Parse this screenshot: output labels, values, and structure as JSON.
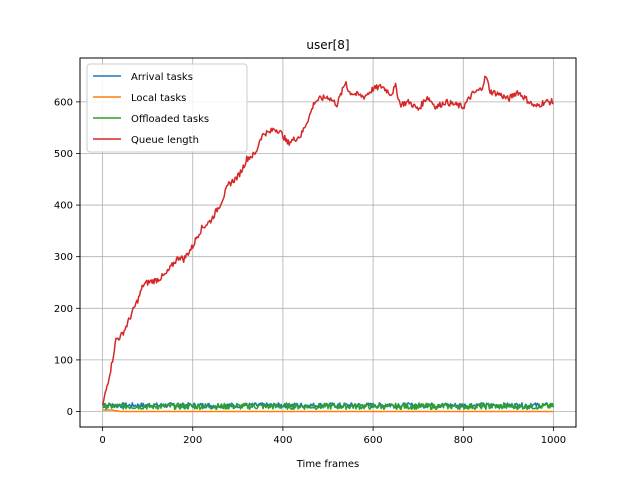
{
  "chart_data": {
    "type": "line",
    "title": "user[8]",
    "xlabel": "Time frames",
    "ylabel": "",
    "xlim": [
      -50,
      1050
    ],
    "ylim": [
      -30,
      685
    ],
    "xticks": [
      0,
      200,
      400,
      600,
      800,
      1000
    ],
    "yticks": [
      0,
      100,
      200,
      300,
      400,
      500,
      600
    ],
    "grid": true,
    "legend": "top-left",
    "series": [
      {
        "name": "Arrival tasks",
        "color": "#1f77b4",
        "x": [
          0,
          1000
        ],
        "y": [
          12,
          12
        ],
        "noise": 5
      },
      {
        "name": "Local tasks",
        "color": "#ff7f0e",
        "x": [
          0,
          20,
          40,
          100,
          200,
          300,
          400,
          480,
          500,
          600,
          700,
          800,
          900,
          1000
        ],
        "y": [
          3,
          3,
          0,
          0,
          0,
          0,
          0,
          0,
          0,
          0,
          0,
          0,
          0,
          0
        ],
        "noise": 0
      },
      {
        "name": "Offloaded tasks",
        "color": "#2ca02c",
        "x": [
          0,
          1000
        ],
        "y": [
          10,
          10
        ],
        "noise": 6
      },
      {
        "name": "Queue length",
        "color": "#d62728",
        "x": [
          0,
          10,
          20,
          30,
          40,
          50,
          60,
          70,
          80,
          90,
          100,
          120,
          140,
          160,
          170,
          180,
          200,
          210,
          220,
          240,
          250,
          260,
          270,
          280,
          300,
          310,
          320,
          340,
          350,
          360,
          370,
          380,
          390,
          400,
          410,
          420,
          430,
          440,
          450,
          460,
          470,
          480,
          500,
          520,
          540,
          545,
          560,
          580,
          600,
          620,
          640,
          650,
          660,
          680,
          700,
          720,
          740,
          760,
          780,
          800,
          820,
          840,
          850,
          860,
          880,
          900,
          920,
          940,
          960,
          980,
          1000
        ],
        "y": [
          10,
          50,
          90,
          140,
          145,
          160,
          180,
          200,
          220,
          245,
          250,
          255,
          265,
          290,
          300,
          295,
          320,
          340,
          355,
          370,
          385,
          400,
          420,
          440,
          455,
          470,
          490,
          500,
          530,
          540,
          540,
          548,
          545,
          535,
          520,
          525,
          530,
          535,
          555,
          575,
          600,
          605,
          610,
          595,
          640,
          620,
          615,
          610,
          625,
          630,
          615,
          630,
          595,
          600,
          585,
          610,
          590,
          600,
          595,
          590,
          615,
          625,
          650,
          620,
          615,
          605,
          620,
          605,
          590,
          600,
          600
        ],
        "noise": 6
      }
    ]
  }
}
